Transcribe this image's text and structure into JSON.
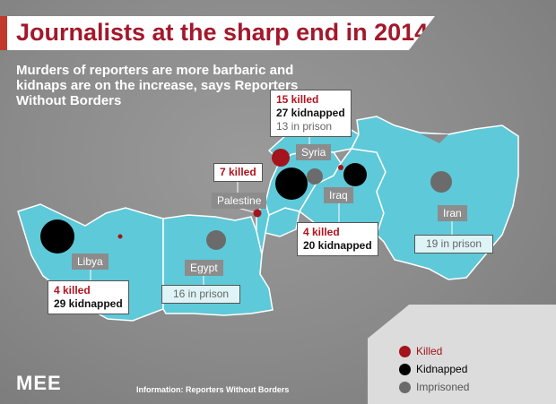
{
  "title": "Journalists at the sharp end in 2014",
  "subtitle": "Murders of reporters are more barbaric and kidnaps are on the increase, says Reporters Without Borders",
  "countries": {
    "libya": {
      "name": "Libya",
      "killed": "4 killed",
      "kidnapped": "29 kidnapped"
    },
    "egypt": {
      "name": "Egypt",
      "prison": "16 in prison"
    },
    "palestine": {
      "name": "Palestine",
      "killed": "7 killed"
    },
    "syria": {
      "name": "Syria",
      "killed": "15 killed",
      "kidnapped": "27 kidnapped",
      "prison": "13 in prison"
    },
    "iraq": {
      "name": "Iraq",
      "killed": "4 killed",
      "kidnapped": "20 kidnapped"
    },
    "iran": {
      "name": "Iran",
      "prison": "19 in prison"
    }
  },
  "legend": {
    "killed": "Killed",
    "kidnapped": "Kidnapped",
    "imprisoned": "Imprisoned"
  },
  "logo": "MEE",
  "info": "Information: Reporters Without Borders",
  "colors": {
    "land": "#5ec9d9",
    "killed": "#a3141c",
    "kidnapped": "#000000",
    "imprisoned": "#6b6b6b",
    "title": "#a3182b"
  }
}
